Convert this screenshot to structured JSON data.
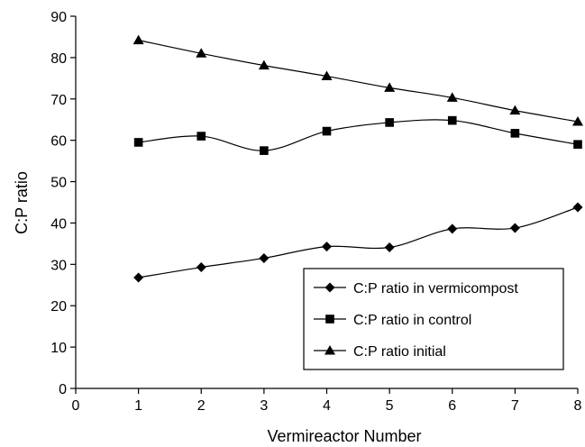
{
  "chart_data": {
    "type": "line",
    "title": "",
    "xlabel": "Vermireactor Number",
    "ylabel": "C:P ratio",
    "xlim": [
      0,
      8
    ],
    "ylim": [
      0,
      90
    ],
    "xticks": [
      "0",
      "1",
      "2",
      "3",
      "4",
      "5",
      "6",
      "7",
      "8"
    ],
    "yticks": [
      "0",
      "10",
      "20",
      "30",
      "40",
      "50",
      "60",
      "70",
      "80",
      "90"
    ],
    "grid": false,
    "legend_position": "bottom-right",
    "x": [
      1,
      2,
      3,
      4,
      5,
      6,
      7,
      8
    ],
    "series": [
      {
        "name": "C:P ratio in vermicompost",
        "marker": "diamond",
        "values": [
          26.8,
          29.3,
          31.5,
          34.3,
          34.1,
          38.6,
          38.8,
          43.8
        ]
      },
      {
        "name": "C:P ratio in control",
        "marker": "square",
        "values": [
          59.5,
          61.0,
          57.5,
          62.2,
          64.3,
          64.8,
          61.7,
          59.0
        ]
      },
      {
        "name": "C:P ratio initial",
        "marker": "triangle",
        "values": [
          84.2,
          81.0,
          78.1,
          75.5,
          72.7,
          70.3,
          67.2,
          64.5
        ]
      }
    ]
  }
}
